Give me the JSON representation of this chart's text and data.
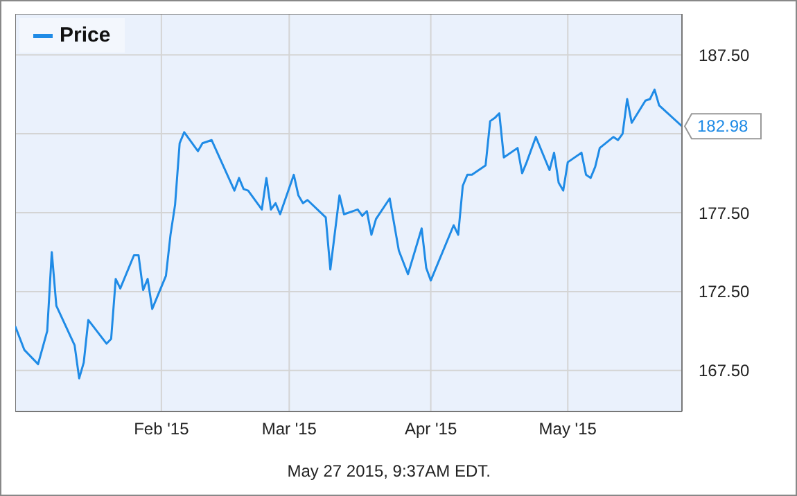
{
  "chart_data": {
    "type": "line",
    "x": [
      "2014-12-31",
      "2015-01-02",
      "2015-01-05",
      "2015-01-07",
      "2015-01-08",
      "2015-01-09",
      "2015-01-13",
      "2015-01-14",
      "2015-01-15",
      "2015-01-16",
      "2015-01-20",
      "2015-01-21",
      "2015-01-22",
      "2015-01-23",
      "2015-01-26",
      "2015-01-27",
      "2015-01-28",
      "2015-01-29",
      "2015-01-30",
      "2015-02-02",
      "2015-02-03",
      "2015-02-04",
      "2015-02-05",
      "2015-02-06",
      "2015-02-09",
      "2015-02-10",
      "2015-02-12",
      "2015-02-17",
      "2015-02-18",
      "2015-02-19",
      "2015-02-20",
      "2015-02-23",
      "2015-02-24",
      "2015-02-25",
      "2015-02-26",
      "2015-02-27",
      "2015-03-02",
      "2015-03-03",
      "2015-03-04",
      "2015-03-05",
      "2015-03-09",
      "2015-03-10",
      "2015-03-12",
      "2015-03-13",
      "2015-03-16",
      "2015-03-17",
      "2015-03-18",
      "2015-03-19",
      "2015-03-20",
      "2015-03-23",
      "2015-03-25",
      "2015-03-27",
      "2015-03-30",
      "2015-03-31",
      "2015-04-01",
      "2015-04-06",
      "2015-04-07",
      "2015-04-08",
      "2015-04-09",
      "2015-04-10",
      "2015-04-13",
      "2015-04-14",
      "2015-04-15",
      "2015-04-16",
      "2015-04-17",
      "2015-04-20",
      "2015-04-21",
      "2015-04-22",
      "2015-04-24",
      "2015-04-27",
      "2015-04-28",
      "2015-04-29",
      "2015-04-30",
      "2015-05-01",
      "2015-05-04",
      "2015-05-05",
      "2015-05-06",
      "2015-05-07",
      "2015-05-08",
      "2015-05-11",
      "2015-05-12",
      "2015-05-13",
      "2015-05-14",
      "2015-05-15",
      "2015-05-18",
      "2015-05-19",
      "2015-05-20",
      "2015-05-21",
      "2015-05-26"
    ],
    "series": [
      {
        "name": "Price",
        "color": "#1f8be6",
        "values": [
          170.3,
          168.8,
          167.9,
          170.0,
          175.0,
          171.6,
          169.1,
          167.0,
          168.0,
          170.7,
          169.2,
          169.5,
          173.3,
          172.7,
          174.8,
          174.8,
          172.6,
          173.3,
          171.4,
          173.5,
          176.1,
          178.0,
          181.9,
          182.6,
          181.4,
          181.9,
          182.1,
          178.9,
          179.7,
          179.0,
          178.9,
          177.7,
          179.7,
          177.7,
          178.1,
          177.4,
          179.9,
          178.6,
          178.1,
          178.3,
          177.2,
          173.9,
          178.6,
          177.4,
          177.7,
          177.3,
          177.6,
          176.1,
          177.1,
          178.4,
          175.1,
          173.6,
          176.5,
          174.0,
          173.2,
          176.7,
          176.1,
          179.2,
          179.9,
          179.9,
          180.5,
          183.3,
          183.5,
          183.8,
          181.0,
          181.6,
          180.0,
          180.7,
          182.3,
          180.2,
          181.3,
          179.4,
          178.9,
          180.7,
          181.3,
          179.9,
          179.7,
          180.4,
          181.6,
          182.3,
          182.1,
          182.5,
          184.7,
          183.2,
          184.6,
          184.7,
          185.3,
          184.3,
          182.98
        ],
        "value_labels": [
          null,
          null,
          null,
          null,
          null,
          null,
          null,
          null,
          null,
          null,
          null,
          null,
          null,
          null,
          null,
          null,
          null,
          null,
          null,
          null,
          null,
          null,
          null,
          null,
          null,
          null,
          null,
          null,
          null,
          null,
          null,
          null,
          null,
          null,
          null,
          null,
          null,
          null,
          null,
          null,
          null,
          null,
          null,
          null,
          null,
          null,
          null,
          null,
          null,
          null,
          null,
          null,
          null,
          null,
          null,
          null,
          null,
          null,
          null,
          null,
          null,
          null,
          null,
          null,
          null,
          null,
          null,
          null,
          null,
          null,
          null,
          null,
          null,
          null,
          null,
          null,
          null,
          null,
          null,
          null,
          null,
          null,
          null,
          null,
          null,
          null,
          null,
          null,
          "182.98"
        ]
      }
    ],
    "xlim": [
      "2014-12-31",
      "2015-05-26"
    ],
    "xticks": [
      {
        "value": "2015-02-01",
        "label": "Feb '15"
      },
      {
        "value": "2015-03-01",
        "label": "Mar '15"
      },
      {
        "value": "2015-04-01",
        "label": "Apr '15"
      },
      {
        "value": "2015-05-01",
        "label": "May '15"
      }
    ],
    "ylim": [
      164.9,
      190.1
    ],
    "yticks": [
      {
        "value": 167.5,
        "label": "167.50"
      },
      {
        "value": 172.5,
        "label": "172.50"
      },
      {
        "value": 177.5,
        "label": "177.50"
      },
      {
        "value": 182.5,
        "label": null
      },
      {
        "value": 187.5,
        "label": "187.50"
      }
    ],
    "grid": true,
    "legend": "top left",
    "marker": "none",
    "line_style": "solid",
    "annotations": [
      "May 27 2015, 9:37AM EDT."
    ]
  }
}
